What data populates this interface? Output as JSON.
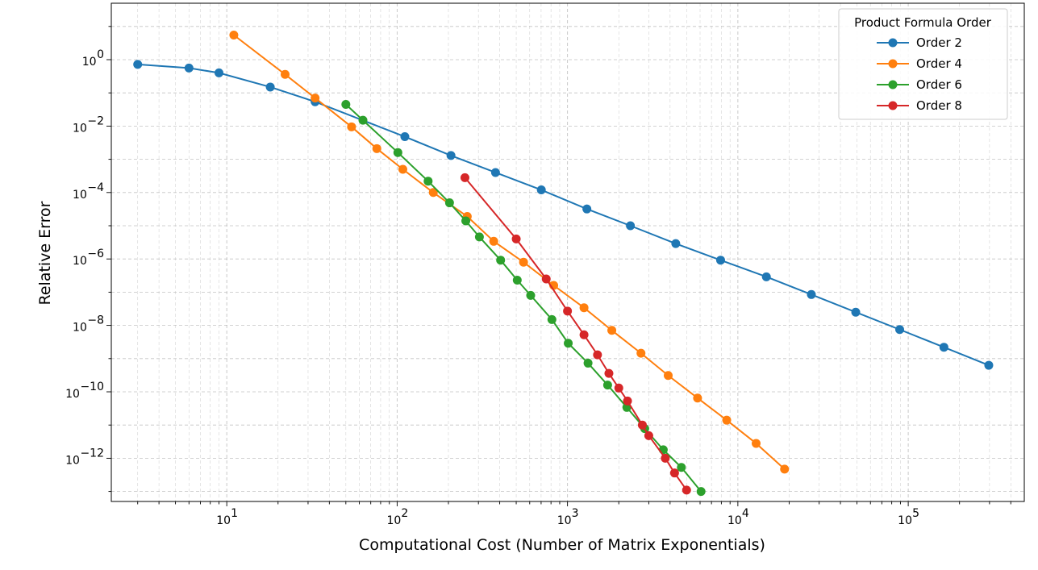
{
  "chart_data": {
    "type": "line",
    "title": "",
    "xlabel": "Computational Cost (Number of Matrix Exponentials)",
    "ylabel": "Relative Error",
    "xscale": "log",
    "yscale": "log",
    "xlim": [
      2.1,
      480000
    ],
    "ylim": [
      5e-14,
      50
    ],
    "x_ticks": [
      {
        "value": 10,
        "base": "10",
        "exp": "1"
      },
      {
        "value": 100,
        "base": "10",
        "exp": "2"
      },
      {
        "value": 1000,
        "base": "10",
        "exp": "3"
      },
      {
        "value": 10000,
        "base": "10",
        "exp": "4"
      },
      {
        "value": 100000,
        "base": "10",
        "exp": "5"
      }
    ],
    "y_ticks": [
      {
        "value": 1,
        "base": "10",
        "exp": "0"
      },
      {
        "value": 0.01,
        "base": "10",
        "exp": "−2"
      },
      {
        "value": 0.0001,
        "base": "10",
        "exp": "−4"
      },
      {
        "value": 1e-06,
        "base": "10",
        "exp": "−6"
      },
      {
        "value": 1e-08,
        "base": "10",
        "exp": "−8"
      },
      {
        "value": 1e-10,
        "base": "10",
        "exp": "−10"
      },
      {
        "value": 1e-12,
        "base": "10",
        "exp": "−12"
      }
    ],
    "grid": true,
    "legend": {
      "title": "Product Formula Order",
      "position": "top-right"
    },
    "series": [
      {
        "name": "Order 2",
        "color": "#1f77b4",
        "x": [
          3,
          6,
          9,
          18,
          33,
          111,
          207,
          378,
          702,
          1299,
          2340,
          4320,
          7920,
          14700,
          27000,
          49200,
          89100,
          162000,
          297000
        ],
        "y": [
          0.72,
          0.56,
          0.4,
          0.15,
          0.054,
          0.0048,
          0.0013,
          0.0004,
          0.00012,
          3.2e-05,
          1e-05,
          2.9e-06,
          9.2e-07,
          2.9e-07,
          8.5e-08,
          2.5e-08,
          7.5e-09,
          2.2e-09,
          6.3e-10
        ]
      },
      {
        "name": "Order 4",
        "color": "#ff7f0e",
        "x": [
          11,
          22,
          33,
          54,
          76,
          108,
          163,
          258,
          369,
          552,
          830,
          1250,
          1820,
          2700,
          3900,
          5800,
          8600,
          12800,
          18800
        ],
        "y": [
          5.5,
          0.36,
          0.07,
          0.0095,
          0.0021,
          0.0005,
          0.0001,
          1.9e-05,
          3.4e-06,
          8e-07,
          1.6e-07,
          3.4e-08,
          7.1e-09,
          1.45e-09,
          3.1e-10,
          6.5e-11,
          1.4e-11,
          2.8e-12,
          4.7e-13
        ]
      },
      {
        "name": "Order 6",
        "color": "#2ca02c",
        "x": [
          50,
          63,
          101,
          152,
          203,
          253,
          304,
          405,
          507,
          608,
          810,
          1010,
          1320,
          1720,
          2230,
          2840,
          3650,
          4660,
          6080
        ],
        "y": [
          0.045,
          0.015,
          0.0016,
          0.00022,
          4.9e-05,
          1.4e-05,
          4.6e-06,
          9.2e-07,
          2.3e-07,
          8e-08,
          1.5e-08,
          2.9e-09,
          7.3e-10,
          1.6e-10,
          3.4e-11,
          7.8e-12,
          1.8e-12,
          5.3e-13,
          1e-13
        ]
      },
      {
        "name": "Order 8",
        "color": "#d62728",
        "x": [
          250,
          500,
          750,
          1000,
          1250,
          1500,
          1750,
          2000,
          2250,
          2750,
          3000,
          3750,
          4250,
          5000
        ],
        "y": [
          0.00028,
          4e-06,
          2.5e-07,
          2.7e-08,
          5.2e-09,
          1.3e-09,
          3.6e-10,
          1.3e-10,
          5.3e-11,
          1e-11,
          4.8e-12,
          1e-12,
          3.6e-13,
          1.1e-13
        ]
      }
    ]
  }
}
